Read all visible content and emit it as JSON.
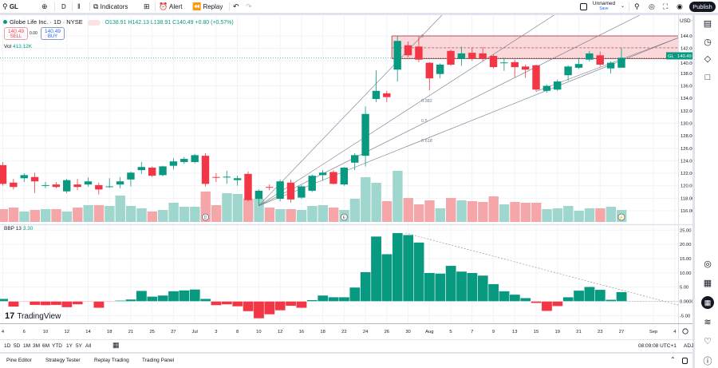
{
  "toolbar": {
    "symbol": "GL",
    "interval": "D",
    "indicators_label": "Indicators",
    "alert_label": "Alert",
    "replay_label": "Replay",
    "layout_name": "Unnamed",
    "layout_save": "Save",
    "publish_label": "Publish"
  },
  "legend": {
    "title": "Globe Life Inc. · 1D · NYSE",
    "ohlc": "O138.91 H142.13 L138.91 C140.49 +0.80 (+0.57%)",
    "sell_price": "140.49",
    "sell_label": "SELL",
    "spread": "0.00",
    "buy_price": "140.49",
    "buy_label": "BUY",
    "vol_label": "Vol",
    "vol_value": "413.12K"
  },
  "indicator": {
    "name": "BBP 13",
    "value": "3.30"
  },
  "price_axis": {
    "currency": "USD",
    "last_symbol": "GL",
    "last_price": "140.49",
    "ticks": [
      "144.00",
      "142.00",
      "140.00",
      "138.00",
      "136.00",
      "134.00",
      "132.00",
      "130.00",
      "128.00",
      "126.00",
      "124.00",
      "122.00",
      "120.00",
      "118.00",
      "116.00"
    ],
    "bbp_ticks": [
      "25.00",
      "20.00",
      "15.00",
      "10.00",
      "5.00",
      "0.0000",
      "-5.00"
    ]
  },
  "time_axis": {
    "labels": [
      {
        "t": "4",
        "i": 0
      },
      {
        "t": "6",
        "i": 2
      },
      {
        "t": "10",
        "i": 4
      },
      {
        "t": "12",
        "i": 6
      },
      {
        "t": "14",
        "i": 8
      },
      {
        "t": "18",
        "i": 10
      },
      {
        "t": "21",
        "i": 12
      },
      {
        "t": "25",
        "i": 14
      },
      {
        "t": "27",
        "i": 16
      },
      {
        "t": "Jul",
        "i": 18
      },
      {
        "t": "3",
        "i": 20
      },
      {
        "t": "8",
        "i": 22
      },
      {
        "t": "10",
        "i": 24
      },
      {
        "t": "12",
        "i": 26
      },
      {
        "t": "16",
        "i": 28
      },
      {
        "t": "18",
        "i": 30
      },
      {
        "t": "22",
        "i": 32
      },
      {
        "t": "24",
        "i": 34
      },
      {
        "t": "26",
        "i": 36
      },
      {
        "t": "30",
        "i": 38
      },
      {
        "t": "Aug",
        "i": 40
      },
      {
        "t": "5",
        "i": 42
      },
      {
        "t": "7",
        "i": 44
      },
      {
        "t": "9",
        "i": 46
      },
      {
        "t": "13",
        "i": 48
      },
      {
        "t": "15",
        "i": 50
      },
      {
        "t": "19",
        "i": 52
      },
      {
        "t": "21",
        "i": 54
      },
      {
        "t": "23",
        "i": 56
      },
      {
        "t": "27",
        "i": 58
      },
      {
        "t": "Sep",
        "i": 61
      },
      {
        "t": "4",
        "i": 63
      }
    ]
  },
  "range_bar": {
    "ranges": [
      "1D",
      "5D",
      "1M",
      "3M",
      "6M",
      "YTD",
      "1Y",
      "5Y",
      "All"
    ],
    "clock": "08:09:08 UTC+1",
    "adj": "ADJ"
  },
  "bottom_tabs": [
    "Pine Editor",
    "Strategy Tester",
    "Replay Trading",
    "Trading Panel"
  ],
  "watermark": "TradingView",
  "colors": {
    "up": "#089981",
    "down": "#f23645",
    "up_vol": "#9fd6cd",
    "down_vol": "#f5a6a9",
    "zone": "#f9cdd0",
    "zone_border": "#b2535c"
  },
  "chart_data": {
    "type": "candlestick",
    "symbol": "GL",
    "ylim": [
      115,
      145
    ],
    "grid": true,
    "ohlc": [
      [
        123.3,
        123.8,
        120.0,
        120.3
      ],
      [
        120.5,
        121.1,
        119.4,
        119.8
      ],
      [
        121.2,
        122.0,
        120.6,
        121.7
      ],
      [
        121.4,
        122.1,
        118.8,
        120.7
      ],
      [
        120.0,
        120.6,
        119.6,
        120.1
      ],
      [
        120.2,
        120.6,
        119.6,
        119.8
      ],
      [
        119.1,
        121.1,
        118.8,
        120.9
      ],
      [
        120.2,
        121.1,
        119.3,
        119.8
      ],
      [
        120.2,
        121.3,
        119.9,
        120.7
      ],
      [
        120.1,
        120.5,
        118.6,
        119.4
      ],
      [
        119.8,
        121.2,
        119.7,
        119.9
      ],
      [
        120.2,
        121.4,
        119.6,
        120.7
      ],
      [
        121.0,
        122.3,
        119.9,
        122.1
      ],
      [
        122.5,
        123.8,
        121.9,
        123.0
      ],
      [
        122.9,
        123.1,
        121.4,
        121.6
      ],
      [
        121.7,
        123.2,
        121.5,
        123.1
      ],
      [
        123.2,
        124.4,
        122.6,
        123.9
      ],
      [
        123.8,
        124.6,
        123.5,
        124.3
      ],
      [
        123.8,
        125.1,
        123.6,
        124.9
      ],
      [
        124.8,
        125.2,
        119.9,
        120.3
      ],
      [
        121.4,
        122.0,
        120.6,
        121.3
      ],
      [
        121.4,
        122.4,
        120.3,
        121.45
      ],
      [
        120.9,
        121.6,
        120.0,
        121.2
      ],
      [
        121.9,
        122.3,
        117.5,
        117.7
      ],
      [
        117.9,
        119.4,
        116.8,
        119.2
      ],
      [
        119.8,
        120.2,
        119.3,
        119.7
      ],
      [
        117.9,
        121.0,
        117.5,
        120.7
      ],
      [
        120.5,
        121.0,
        117.3,
        117.8
      ],
      [
        118.1,
        120.1,
        117.9,
        119.9
      ],
      [
        119.2,
        121.8,
        119.0,
        121.6
      ],
      [
        121.7,
        122.5,
        120.8,
        122.1
      ],
      [
        122.2,
        122.5,
        120.2,
        120.3
      ],
      [
        120.2,
        123.0,
        120.0,
        122.9
      ],
      [
        123.7,
        125.2,
        122.5,
        124.9
      ],
      [
        124.8,
        132.7,
        123.1,
        131.5
      ],
      [
        133.9,
        138.5,
        133.4,
        135.2
      ],
      [
        134.8,
        135.2,
        133.4,
        134.2
      ],
      [
        138.6,
        144.0,
        136.7,
        143.2
      ],
      [
        142.5,
        143.1,
        140.6,
        140.9
      ],
      [
        142.3,
        144.0,
        139.8,
        140.2
      ],
      [
        139.7,
        139.8,
        135.3,
        137.2
      ],
      [
        137.9,
        139.6,
        137.2,
        139.4
      ],
      [
        141.6,
        141.8,
        139.2,
        139.4
      ],
      [
        140.3,
        142.3,
        139.2,
        141.2
      ],
      [
        141.3,
        142.2,
        140.0,
        140.4
      ],
      [
        141.2,
        142.2,
        140.0,
        140.4
      ],
      [
        140.8,
        141.0,
        138.8,
        139.0
      ],
      [
        139.7,
        140.5,
        138.4,
        139.75
      ],
      [
        139.8,
        140.2,
        137.4,
        139.0
      ],
      [
        139.1,
        139.4,
        137.3,
        138.6
      ],
      [
        139.3,
        139.4,
        135.1,
        135.4
      ],
      [
        135.2,
        136.2,
        134.9,
        136.0
      ],
      [
        135.4,
        137.0,
        135.2,
        136.7
      ],
      [
        137.7,
        139.3,
        136.8,
        139.1
      ],
      [
        138.9,
        140.5,
        138.7,
        139.5
      ],
      [
        140.2,
        141.6,
        139.9,
        141.2
      ],
      [
        140.9,
        141.5,
        139.1,
        139.4
      ],
      [
        138.8,
        139.9,
        138.0,
        139.7
      ],
      [
        138.91,
        142.13,
        138.91,
        140.49
      ]
    ],
    "volume_k": [
      440,
      495,
      358,
      413,
      440,
      440,
      358,
      495,
      578,
      578,
      550,
      908,
      550,
      468,
      358,
      413,
      660,
      523,
      523,
      1045,
      578,
      990,
      963,
      798,
      798,
      495,
      440,
      440,
      413,
      550,
      578,
      495,
      413,
      798,
      1540,
      1348,
      715,
      1760,
      825,
      605,
      743,
      468,
      825,
      743,
      715,
      688,
      880,
      605,
      688,
      660,
      660,
      440,
      468,
      550,
      385,
      468,
      468,
      523,
      413.12
    ],
    "bbp": [
      0.9,
      -1.9,
      -0.1,
      -1.3,
      -1.4,
      -1.3,
      -2.1,
      -1.1,
      -0.1,
      -2.3,
      -0.1,
      0.3,
      0.7,
      3.7,
      1.7,
      2.1,
      3.6,
      3.9,
      4.2,
      0.9,
      -1.4,
      -1.1,
      -1.8,
      -3.5,
      -6.0,
      -4.6,
      -3.2,
      -1.6,
      -2.3,
      0.5,
      2.1,
      1.5,
      1.5,
      4.9,
      10.3,
      22.8,
      16.6,
      24.0,
      23.3,
      20.7,
      10.0,
      9.8,
      12.5,
      10.5,
      10.0,
      9.1,
      6.1,
      3.6,
      2.4,
      1.2,
      -0.6,
      -3.4,
      -1.7,
      1.5,
      3.8,
      5.1,
      4.1,
      0.6,
      3.3
    ],
    "bbp_ylim": [
      -7,
      26
    ],
    "zone": {
      "top": 144.0,
      "mid": 142.1,
      "bottom": 140.35
    },
    "fib_fan_levels": [
      "0",
      "0.382",
      "0.5",
      "0.618"
    ],
    "events": [
      {
        "i": 19,
        "label": "D"
      },
      {
        "i": 32,
        "label": "E"
      },
      {
        "i": 58,
        "label": "⚡"
      }
    ]
  }
}
